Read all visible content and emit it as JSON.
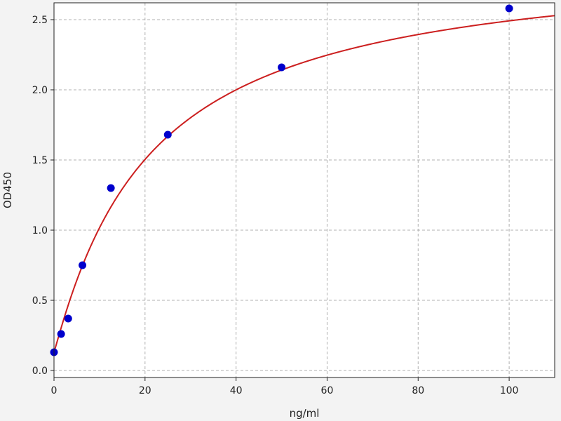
{
  "chart_data": {
    "type": "scatter",
    "title": "",
    "xlabel": "ng/ml",
    "ylabel": "OD450",
    "xlim": [
      0,
      110
    ],
    "ylim": [
      -0.05,
      2.62
    ],
    "grid": true,
    "x_ticks": [
      0,
      20,
      40,
      60,
      80,
      100
    ],
    "x_tick_labels": [
      "0",
      "20",
      "40",
      "60",
      "80",
      "100"
    ],
    "y_ticks": [
      0,
      0.5,
      1.0,
      1.5,
      2.0,
      2.5
    ],
    "y_tick_labels": [
      "0.0",
      "0.5",
      "1.0",
      "1.5",
      "2.0",
      "2.5"
    ],
    "series": [
      {
        "kind": "points",
        "color": "#0000cc",
        "x": [
          0,
          1.5625,
          3.125,
          6.25,
          12.5,
          25,
          50,
          100
        ],
        "y": [
          0.13,
          0.26,
          0.37,
          0.75,
          1.3,
          1.68,
          2.16,
          2.58
        ]
      },
      {
        "kind": "fit-curve",
        "color": "#cc1f1f",
        "model": "four-parameter logistic",
        "params": {
          "a": 0.13,
          "b": 1.05,
          "c": 21.0,
          "d": 2.95
        }
      }
    ]
  }
}
